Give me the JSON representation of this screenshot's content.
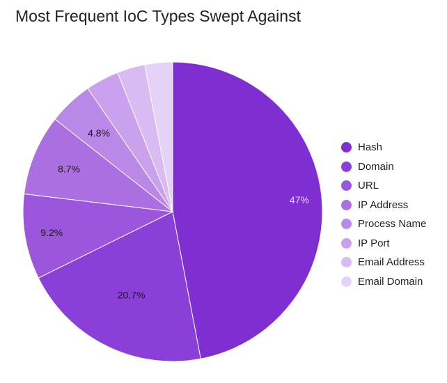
{
  "chart_data": {
    "type": "pie",
    "title": "Most Frequent IoC Types Swept Against",
    "legend_position": "right",
    "slices": [
      {
        "label": "Hash",
        "value": 47,
        "display": "47%",
        "color": "#7f2ed1"
      },
      {
        "label": "Domain",
        "value": 20.7,
        "display": "20.7%",
        "color": "#8a3fd8"
      },
      {
        "label": "URL",
        "value": 9.2,
        "display": "9.2%",
        "color": "#9b56dd"
      },
      {
        "label": "IP Address",
        "value": 8.7,
        "display": "8.7%",
        "color": "#ab6fe2"
      },
      {
        "label": "Process Name",
        "value": 4.8,
        "display": "4.8%",
        "color": "#ba88e7"
      },
      {
        "label": "IP Port",
        "value": 3.6,
        "display": "",
        "color": "#c9a1ed"
      },
      {
        "label": "Email Address",
        "value": 3.0,
        "display": "",
        "color": "#d8bbf2"
      },
      {
        "label": "Email Domain",
        "value": 3.0,
        "display": "",
        "color": "#e5d3f7"
      }
    ]
  }
}
